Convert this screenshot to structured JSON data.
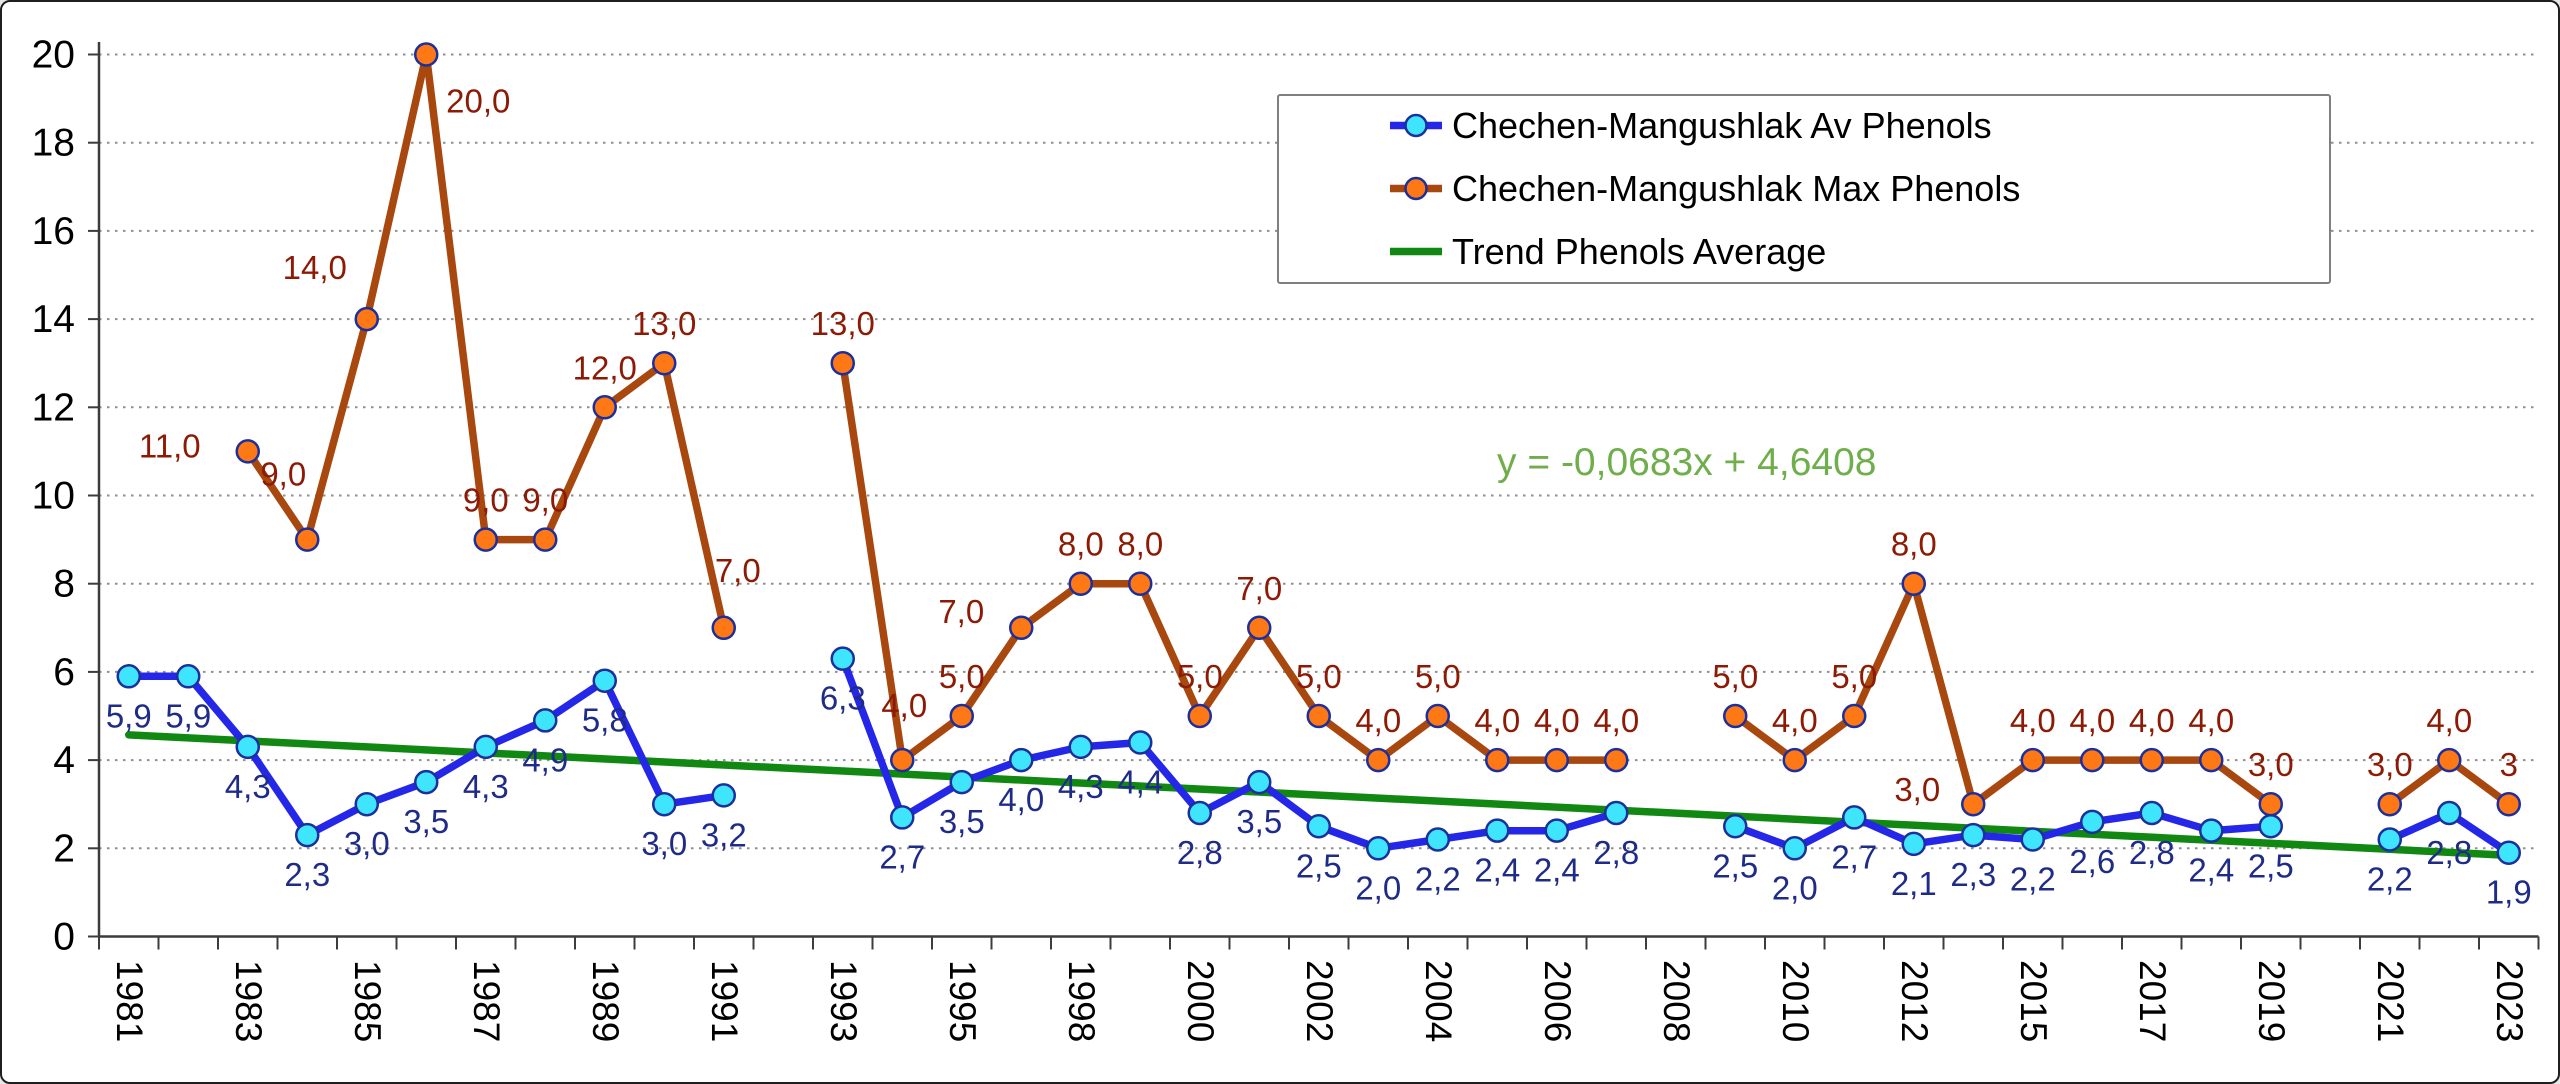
{
  "chart_data": {
    "type": "line",
    "title": "",
    "xlabel": "",
    "ylabel": "",
    "ylim": [
      0,
      20
    ],
    "ytick_step": 2,
    "y_tick_labels": [
      "0",
      "2",
      "4",
      "6",
      "8",
      "10",
      "12",
      "14",
      "16",
      "18",
      "20"
    ],
    "grid": "horizontal-dotted",
    "legend_position": "top-right",
    "x_categories": [
      "1981",
      "1982",
      "1983",
      "1984",
      "1985",
      "1986",
      "1987",
      "1988",
      "1989",
      "1990",
      "1991",
      "1992",
      "1993",
      "1994",
      "1995",
      "1997",
      "1998",
      "1999",
      "2000",
      "2001",
      "2002",
      "2003",
      "2004",
      "2005",
      "2006",
      "2007",
      "2008",
      "2009",
      "2010",
      "2011",
      "2012",
      "2014",
      "2015",
      "2016",
      "2017",
      "2018",
      "2019",
      "2020",
      "2021",
      "2022",
      "2023"
    ],
    "x_label_every": 2,
    "x_tick_labels": [
      "1981",
      "1983",
      "1985",
      "1987",
      "1989",
      "1991",
      "1993",
      "1995",
      "1998",
      "2000",
      "2002",
      "2004",
      "2006",
      "2008",
      "2010",
      "2012",
      "2015",
      "2017",
      "2019",
      "2021",
      "2023"
    ],
    "series": [
      {
        "name": "Chechen-Mangushlak Av Phenols",
        "color": "#2427E8",
        "marker_fill": "#3EE5FC",
        "marker_stroke": "#1C2F9C",
        "label_color": "#1F2C87",
        "values": [
          5.9,
          5.9,
          4.3,
          2.3,
          3.0,
          3.5,
          4.3,
          4.9,
          5.8,
          3.0,
          3.2,
          null,
          6.3,
          2.7,
          3.5,
          4.0,
          4.3,
          4.4,
          2.8,
          3.5,
          2.5,
          2.0,
          2.2,
          2.4,
          2.4,
          2.8,
          null,
          2.5,
          2.0,
          2.7,
          2.1,
          2.3,
          2.2,
          2.6,
          2.8,
          2.4,
          2.5,
          null,
          2.2,
          2.8,
          1.9
        ],
        "labels": [
          "5,9",
          "5,9",
          "4,3",
          "2,3",
          "3,0",
          "3,5",
          "4,3",
          "4,9",
          "5,8",
          "3,0",
          "3,2",
          null,
          "6,3",
          "2,7",
          "3,5",
          "4,0",
          "4,3",
          "4,4",
          "2,8",
          "3,5",
          "2,5",
          "2,0",
          "2,2",
          "2,4",
          "2,4",
          "2,8",
          null,
          "2,5",
          "2,0",
          "2,7",
          "2,1",
          "2,3",
          "2,2",
          "2,6",
          "2,8",
          "2,4",
          "2,5",
          null,
          "2,2",
          "2,8",
          "1,9"
        ]
      },
      {
        "name": "Chechen-Mangushlak Max Phenols",
        "color": "#A8470E",
        "marker_fill": "#FF7816",
        "marker_stroke": "#1C2F9C",
        "label_color": "#8C1A04",
        "values": [
          null,
          null,
          11,
          9,
          14,
          20,
          9,
          9,
          12,
          13,
          7,
          null,
          13,
          4,
          5,
          7,
          8,
          8,
          5,
          7,
          5,
          4,
          5,
          4,
          4,
          4,
          null,
          5,
          4,
          5,
          8,
          3,
          4,
          4,
          4,
          4,
          3,
          null,
          3,
          4,
          3
        ],
        "labels": [
          null,
          null,
          "11,0",
          "9,0",
          "14,0",
          "20,0",
          "9,0",
          "9,0",
          "12,0",
          "13,0",
          "7,0",
          null,
          "13,0",
          "4,0",
          "5,0",
          "7,0",
          "8,0",
          "8,0",
          "5,0",
          "7,0",
          "5,0",
          "4,0",
          "5,0",
          "4,0",
          "4,0",
          "4,0",
          null,
          "5,0",
          "4,0",
          "5,0",
          "8,0",
          "3,0",
          "4,0",
          "4,0",
          "4,0",
          "4,0",
          "3,0",
          null,
          "3,0",
          "4,0",
          "3"
        ]
      }
    ],
    "trend": {
      "name": "Trend Phenols Average",
      "color": "#118811",
      "slope": -0.0683,
      "intercept": 4.6408,
      "equation": "y = -0,0683x + 4,6408",
      "equation_color": "#6FAE4B"
    }
  }
}
